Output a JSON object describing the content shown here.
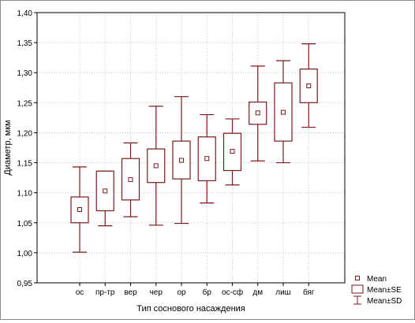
{
  "chart_data": {
    "type": "box",
    "title": "",
    "xlabel": "Тип соснового насаждения",
    "ylabel": "Диаметр, мкм",
    "ylim": [
      0.95,
      1.4
    ],
    "yticks": [
      "0,95",
      "1,00",
      "1,05",
      "1,10",
      "1,15",
      "1,20",
      "1,25",
      "1,30",
      "1,35",
      "1,40"
    ],
    "grid": true,
    "legend_position": "bottom-right",
    "line_color": "#7a1a1a",
    "categories": [
      "ос",
      "пр-тр",
      "вер",
      "чер",
      "ор",
      "бр",
      "ос-сф",
      "дм",
      "лиш",
      "бяг"
    ],
    "mean": [
      1.072,
      1.103,
      1.122,
      1.145,
      1.154,
      1.157,
      1.169,
      1.233,
      1.234,
      1.278
    ],
    "se_low": [
      1.05,
      1.07,
      1.088,
      1.117,
      1.123,
      1.12,
      1.137,
      1.214,
      1.186,
      1.25
    ],
    "se_high": [
      1.093,
      1.136,
      1.157,
      1.173,
      1.186,
      1.193,
      1.199,
      1.251,
      1.283,
      1.306
    ],
    "sd_low": [
      1.001,
      1.045,
      1.06,
      1.046,
      1.049,
      1.083,
      1.113,
      1.153,
      1.15,
      1.209
    ],
    "sd_high": [
      1.143,
      1.136,
      1.183,
      1.244,
      1.26,
      1.23,
      1.223,
      1.311,
      1.32,
      1.348
    ],
    "legend": [
      "Mean",
      "Mean±SE",
      "Mean±SD"
    ]
  }
}
